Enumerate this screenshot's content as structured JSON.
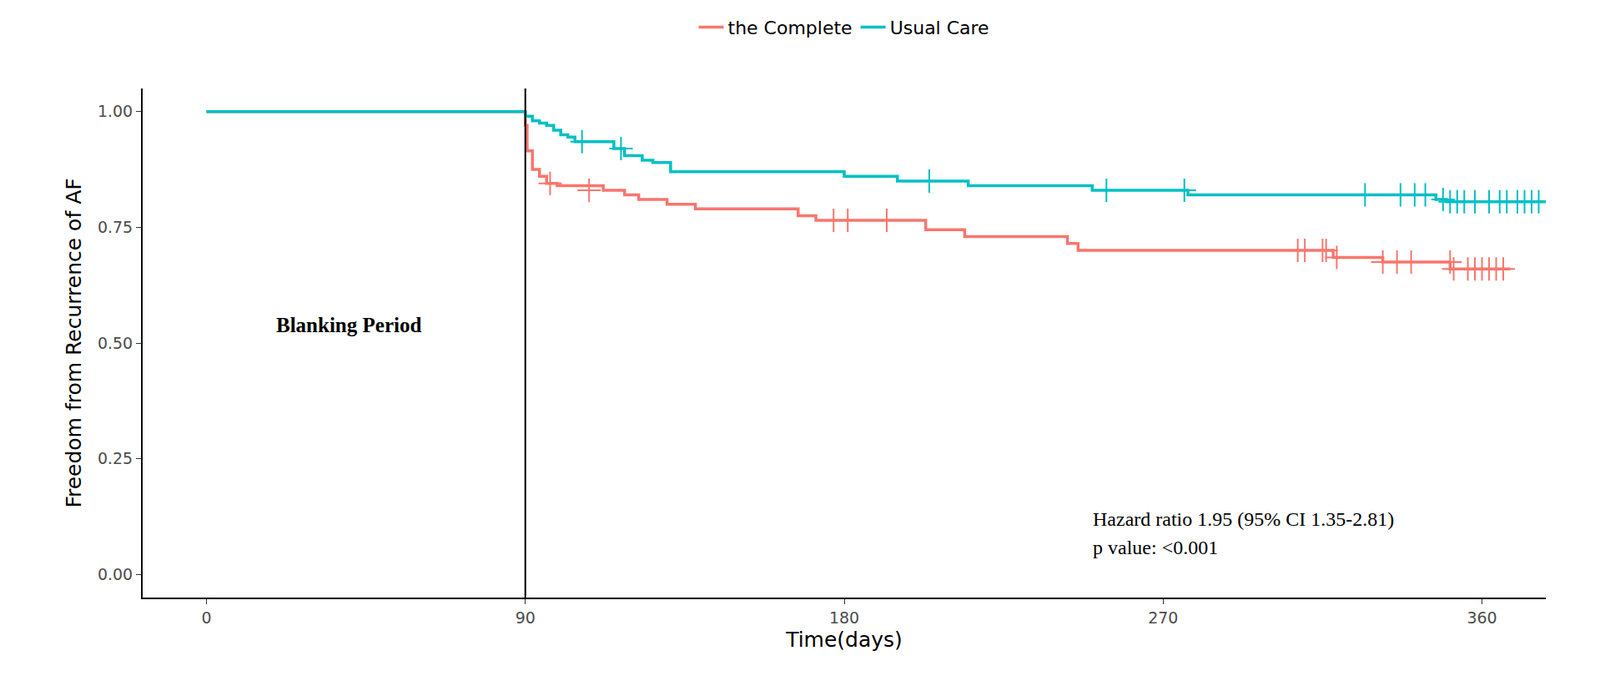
{
  "chart_data": {
    "type": "line",
    "line_style": "step",
    "x_label": "Time(days)",
    "y_label": "Freedom from Recurrence of AF",
    "xlim": [
      -18,
      378
    ],
    "ylim": [
      -0.05,
      1.05
    ],
    "xticks": [
      0,
      90,
      180,
      270,
      360
    ],
    "yticks": [
      {
        "value": 0,
        "label": "0.00"
      },
      {
        "value": 0.25,
        "label": "0.25"
      },
      {
        "value": 0.5,
        "label": "0.50"
      },
      {
        "value": 0.75,
        "label": "0.75"
      },
      {
        "value": 1,
        "label": "1.00"
      }
    ],
    "grid": false,
    "legend": "top",
    "reference_lines": [
      {
        "x": 90
      }
    ],
    "annotations": [
      "Blanking Period",
      "Hazard ratio 1.95 (95% CI 1.35-2.81)",
      "p value: <0.001"
    ],
    "series": [
      {
        "name": "the Complete",
        "color": "#F8766D",
        "marker": "plus",
        "x": [
          0,
          90,
          90.5,
          92,
          94,
          96,
          99,
          112,
          118,
          122,
          130,
          138,
          167,
          172,
          203,
          214,
          243,
          246,
          318,
          332,
          351,
          368
        ],
        "values": [
          1,
          0.97,
          0.915,
          0.875,
          0.86,
          0.845,
          0.84,
          0.83,
          0.82,
          0.81,
          0.8,
          0.79,
          0.775,
          0.765,
          0.745,
          0.73,
          0.715,
          0.7,
          0.685,
          0.675,
          0.66,
          0.66
        ],
        "censored_x": [
          97,
          108,
          177,
          181,
          192,
          308,
          310,
          315,
          316,
          319,
          332,
          336,
          340,
          351,
          352,
          356,
          358,
          360,
          362,
          364,
          366
        ],
        "censored_values": [
          0.845,
          0.83,
          0.765,
          0.765,
          0.765,
          0.7,
          0.7,
          0.7,
          0.7,
          0.685,
          0.675,
          0.675,
          0.675,
          0.675,
          0.66,
          0.66,
          0.66,
          0.66,
          0.66,
          0.66,
          0.66
        ]
      },
      {
        "name": "Usual Care",
        "color": "#00BFC4",
        "marker": "plus",
        "x": [
          0,
          90,
          92,
          94,
          96,
          98,
          100,
          102,
          104,
          115,
          118,
          123,
          126,
          131,
          180,
          195,
          215,
          250,
          277,
          347,
          350,
          378
        ],
        "values": [
          1,
          0.99,
          0.98,
          0.975,
          0.97,
          0.96,
          0.95,
          0.945,
          0.935,
          0.92,
          0.905,
          0.895,
          0.89,
          0.87,
          0.86,
          0.85,
          0.84,
          0.83,
          0.82,
          0.81,
          0.805,
          0.805
        ],
        "censored_x": [
          106,
          117,
          204,
          254,
          276,
          327,
          337,
          341,
          344,
          349,
          351,
          353,
          355,
          358,
          362,
          365,
          367,
          370,
          372,
          374,
          376
        ],
        "censored_values": [
          0.935,
          0.92,
          0.85,
          0.83,
          0.83,
          0.82,
          0.82,
          0.82,
          0.82,
          0.81,
          0.805,
          0.805,
          0.805,
          0.805,
          0.805,
          0.805,
          0.805,
          0.805,
          0.805,
          0.805,
          0.805
        ]
      }
    ]
  }
}
